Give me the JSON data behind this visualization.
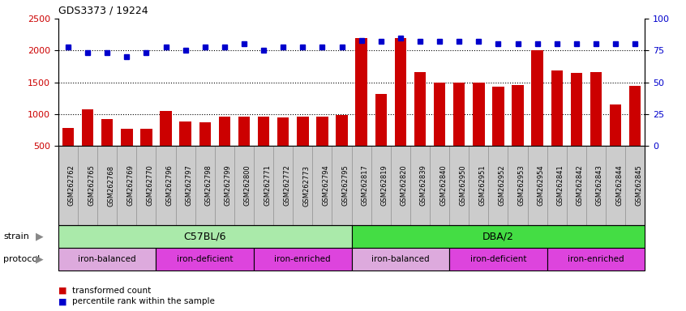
{
  "title": "GDS3373 / 19224",
  "samples": [
    "GSM262762",
    "GSM262765",
    "GSM262768",
    "GSM262769",
    "GSM262770",
    "GSM262796",
    "GSM262797",
    "GSM262798",
    "GSM262799",
    "GSM262800",
    "GSM262771",
    "GSM262772",
    "GSM262773",
    "GSM262794",
    "GSM262795",
    "GSM262817",
    "GSM262819",
    "GSM262820",
    "GSM262839",
    "GSM262840",
    "GSM262950",
    "GSM262951",
    "GSM262952",
    "GSM262953",
    "GSM262954",
    "GSM262841",
    "GSM262842",
    "GSM262843",
    "GSM262844",
    "GSM262845"
  ],
  "bar_values": [
    780,
    1080,
    920,
    770,
    770,
    1050,
    880,
    870,
    960,
    960,
    960,
    950,
    960,
    960,
    990,
    2200,
    1310,
    2190,
    1660,
    1490,
    1490,
    1490,
    1430,
    1450,
    2000,
    1680,
    1650,
    1660,
    1150,
    1440
  ],
  "dot_values": [
    78,
    73,
    73,
    70,
    73,
    78,
    75,
    78,
    78,
    80,
    75,
    78,
    78,
    78,
    78,
    83,
    82,
    85,
    82,
    82,
    82,
    82,
    80,
    80,
    80,
    80,
    80,
    80,
    80,
    80
  ],
  "bar_color": "#cc0000",
  "dot_color": "#0000cc",
  "ylim_left": [
    500,
    2500
  ],
  "ylim_right": [
    0,
    100
  ],
  "yticks_left": [
    500,
    1000,
    1500,
    2000,
    2500
  ],
  "yticks_right": [
    0,
    25,
    50,
    75,
    100
  ],
  "grid_values": [
    1000,
    1500,
    2000
  ],
  "strain_groups": [
    {
      "label": "C57BL/6",
      "start": 0,
      "end": 14,
      "color": "#aaeaaa"
    },
    {
      "label": "DBA/2",
      "start": 15,
      "end": 29,
      "color": "#44dd44"
    }
  ],
  "protocol_groups": [
    {
      "label": "iron-balanced",
      "start": 0,
      "end": 4,
      "color": "#ddaadd"
    },
    {
      "label": "iron-deficient",
      "start": 5,
      "end": 9,
      "color": "#dd44dd"
    },
    {
      "label": "iron-enriched",
      "start": 10,
      "end": 14,
      "color": "#dd44dd"
    },
    {
      "label": "iron-balanced",
      "start": 15,
      "end": 19,
      "color": "#ddaadd"
    },
    {
      "label": "iron-deficient",
      "start": 20,
      "end": 24,
      "color": "#dd44dd"
    },
    {
      "label": "iron-enriched",
      "start": 25,
      "end": 29,
      "color": "#dd44dd"
    }
  ],
  "xtick_bg": "#cccccc",
  "xtick_edge": "#888888"
}
